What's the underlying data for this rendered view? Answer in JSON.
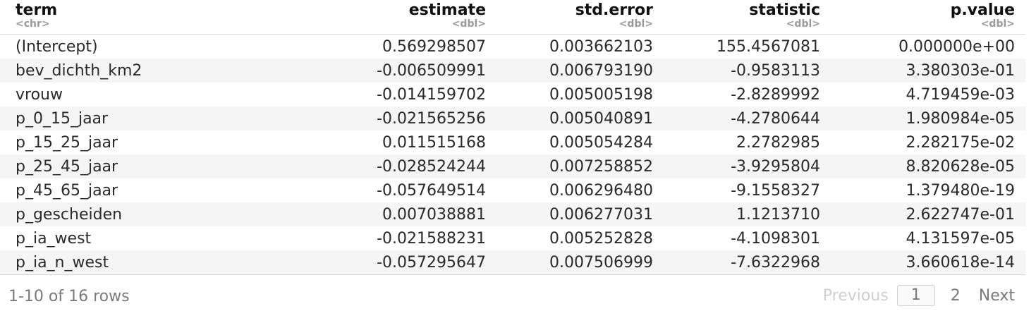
{
  "table": {
    "columns": [
      {
        "name": "term",
        "type": "<chr>"
      },
      {
        "name": "estimate",
        "type": "<dbl>"
      },
      {
        "name": "std.error",
        "type": "<dbl>"
      },
      {
        "name": "statistic",
        "type": "<dbl>"
      },
      {
        "name": "p.value",
        "type": "<dbl>"
      }
    ],
    "rows": [
      [
        "(Intercept)",
        "0.569298507",
        "0.003662103",
        "155.4567081",
        "0.000000e+00"
      ],
      [
        "bev_dichth_km2",
        "-0.006509991",
        "0.006793190",
        "-0.9583113",
        "3.380303e-01"
      ],
      [
        "vrouw",
        "-0.014159702",
        "0.005005198",
        "-2.8289992",
        "4.719459e-03"
      ],
      [
        "p_0_15_jaar",
        "-0.021565256",
        "0.005040891",
        "-4.2780644",
        "1.980984e-05"
      ],
      [
        "p_15_25_jaar",
        "0.011515168",
        "0.005054284",
        "2.2782985",
        "2.282175e-02"
      ],
      [
        "p_25_45_jaar",
        "-0.028524244",
        "0.007258852",
        "-3.9295804",
        "8.820628e-05"
      ],
      [
        "p_45_65_jaar",
        "-0.057649514",
        "0.006296480",
        "-9.1558327",
        "1.379480e-19"
      ],
      [
        "p_gescheiden",
        "0.007038881",
        "0.006277031",
        "1.1213710",
        "2.622747e-01"
      ],
      [
        "p_ia_west",
        "-0.021588231",
        "0.005252828",
        "-4.1098301",
        "4.131597e-05"
      ],
      [
        "p_ia_n_west",
        "-0.057295647",
        "0.007506999",
        "-7.6322968",
        "3.660618e-14"
      ]
    ]
  },
  "footer": {
    "rows_info": "1-10 of 16 rows",
    "previous_label": "Previous",
    "page_1": "1",
    "page_2": "2",
    "next_label": "Next"
  }
}
